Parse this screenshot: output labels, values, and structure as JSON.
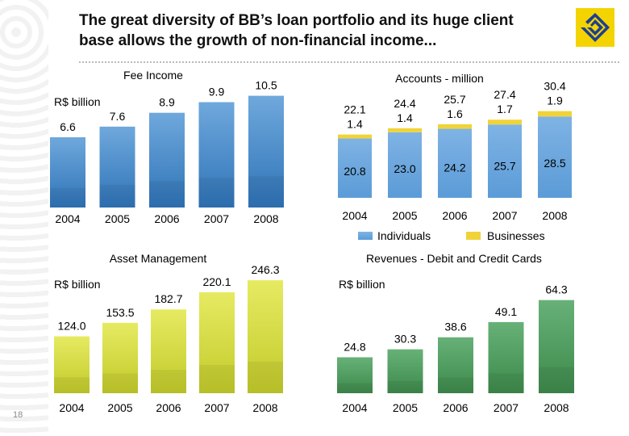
{
  "header": {
    "title_line1": "The great diversity of BB’s loan portfolio and its huge client",
    "title_line2": "base allows the growth of non-financial income...",
    "page_number": "18"
  },
  "colors": {
    "fee_bar": "#3f82c0",
    "asset_bar": "#d1d83a",
    "cards_bar": "#4c9a5a",
    "individuals": "#6aa6dd",
    "businesses": "#f0d33a"
  },
  "chart_data": [
    {
      "id": "fee",
      "type": "bar",
      "title": "Fee Income",
      "unit_label": "R$ billion",
      "categories": [
        "2004",
        "2005",
        "2006",
        "2007",
        "2008"
      ],
      "values": [
        6.6,
        7.6,
        8.9,
        9.9,
        10.5
      ],
      "value_labels": [
        "6.6",
        "7.6",
        "8.9",
        "9.9",
        "10.5"
      ],
      "ylim": [
        0,
        11
      ]
    },
    {
      "id": "accounts",
      "type": "bar",
      "stacked": true,
      "title": "Accounts - million",
      "categories": [
        "2004",
        "2005",
        "2006",
        "2007",
        "2008"
      ],
      "totals": [
        "22.1",
        "24.4",
        "25.7",
        "27.4",
        "30.4"
      ],
      "series": [
        {
          "name": "Individuals",
          "values": [
            20.8,
            23.0,
            24.2,
            25.7,
            28.5
          ],
          "labels": [
            "20.8",
            "23.0",
            "24.2",
            "25.7",
            "28.5"
          ]
        },
        {
          "name": "Businesses",
          "values": [
            1.4,
            1.4,
            1.6,
            1.7,
            1.9
          ],
          "labels": [
            "1.4",
            "1.4",
            "1.6",
            "1.7",
            "1.9"
          ]
        }
      ],
      "ylim": [
        0,
        32
      ]
    },
    {
      "id": "asset",
      "type": "bar",
      "title": "Asset Management",
      "unit_label": "R$ billion",
      "categories": [
        "2004",
        "2005",
        "2006",
        "2007",
        "2008"
      ],
      "values": [
        124.0,
        153.5,
        182.7,
        220.1,
        246.3
      ],
      "value_labels": [
        "124.0",
        "153.5",
        "182.7",
        "220.1",
        "246.3"
      ],
      "ylim": [
        0,
        250
      ]
    },
    {
      "id": "cards",
      "type": "bar",
      "title": "Revenues - Debit and Credit Cards",
      "unit_label": "R$ billion",
      "categories": [
        "2004",
        "2005",
        "2006",
        "2007",
        "2008"
      ],
      "values": [
        24.8,
        30.3,
        38.6,
        49.1,
        64.3
      ],
      "value_labels": [
        "24.8",
        "30.3",
        "38.6",
        "49.1",
        "64.3"
      ],
      "ylim": [
        0,
        68
      ]
    }
  ]
}
